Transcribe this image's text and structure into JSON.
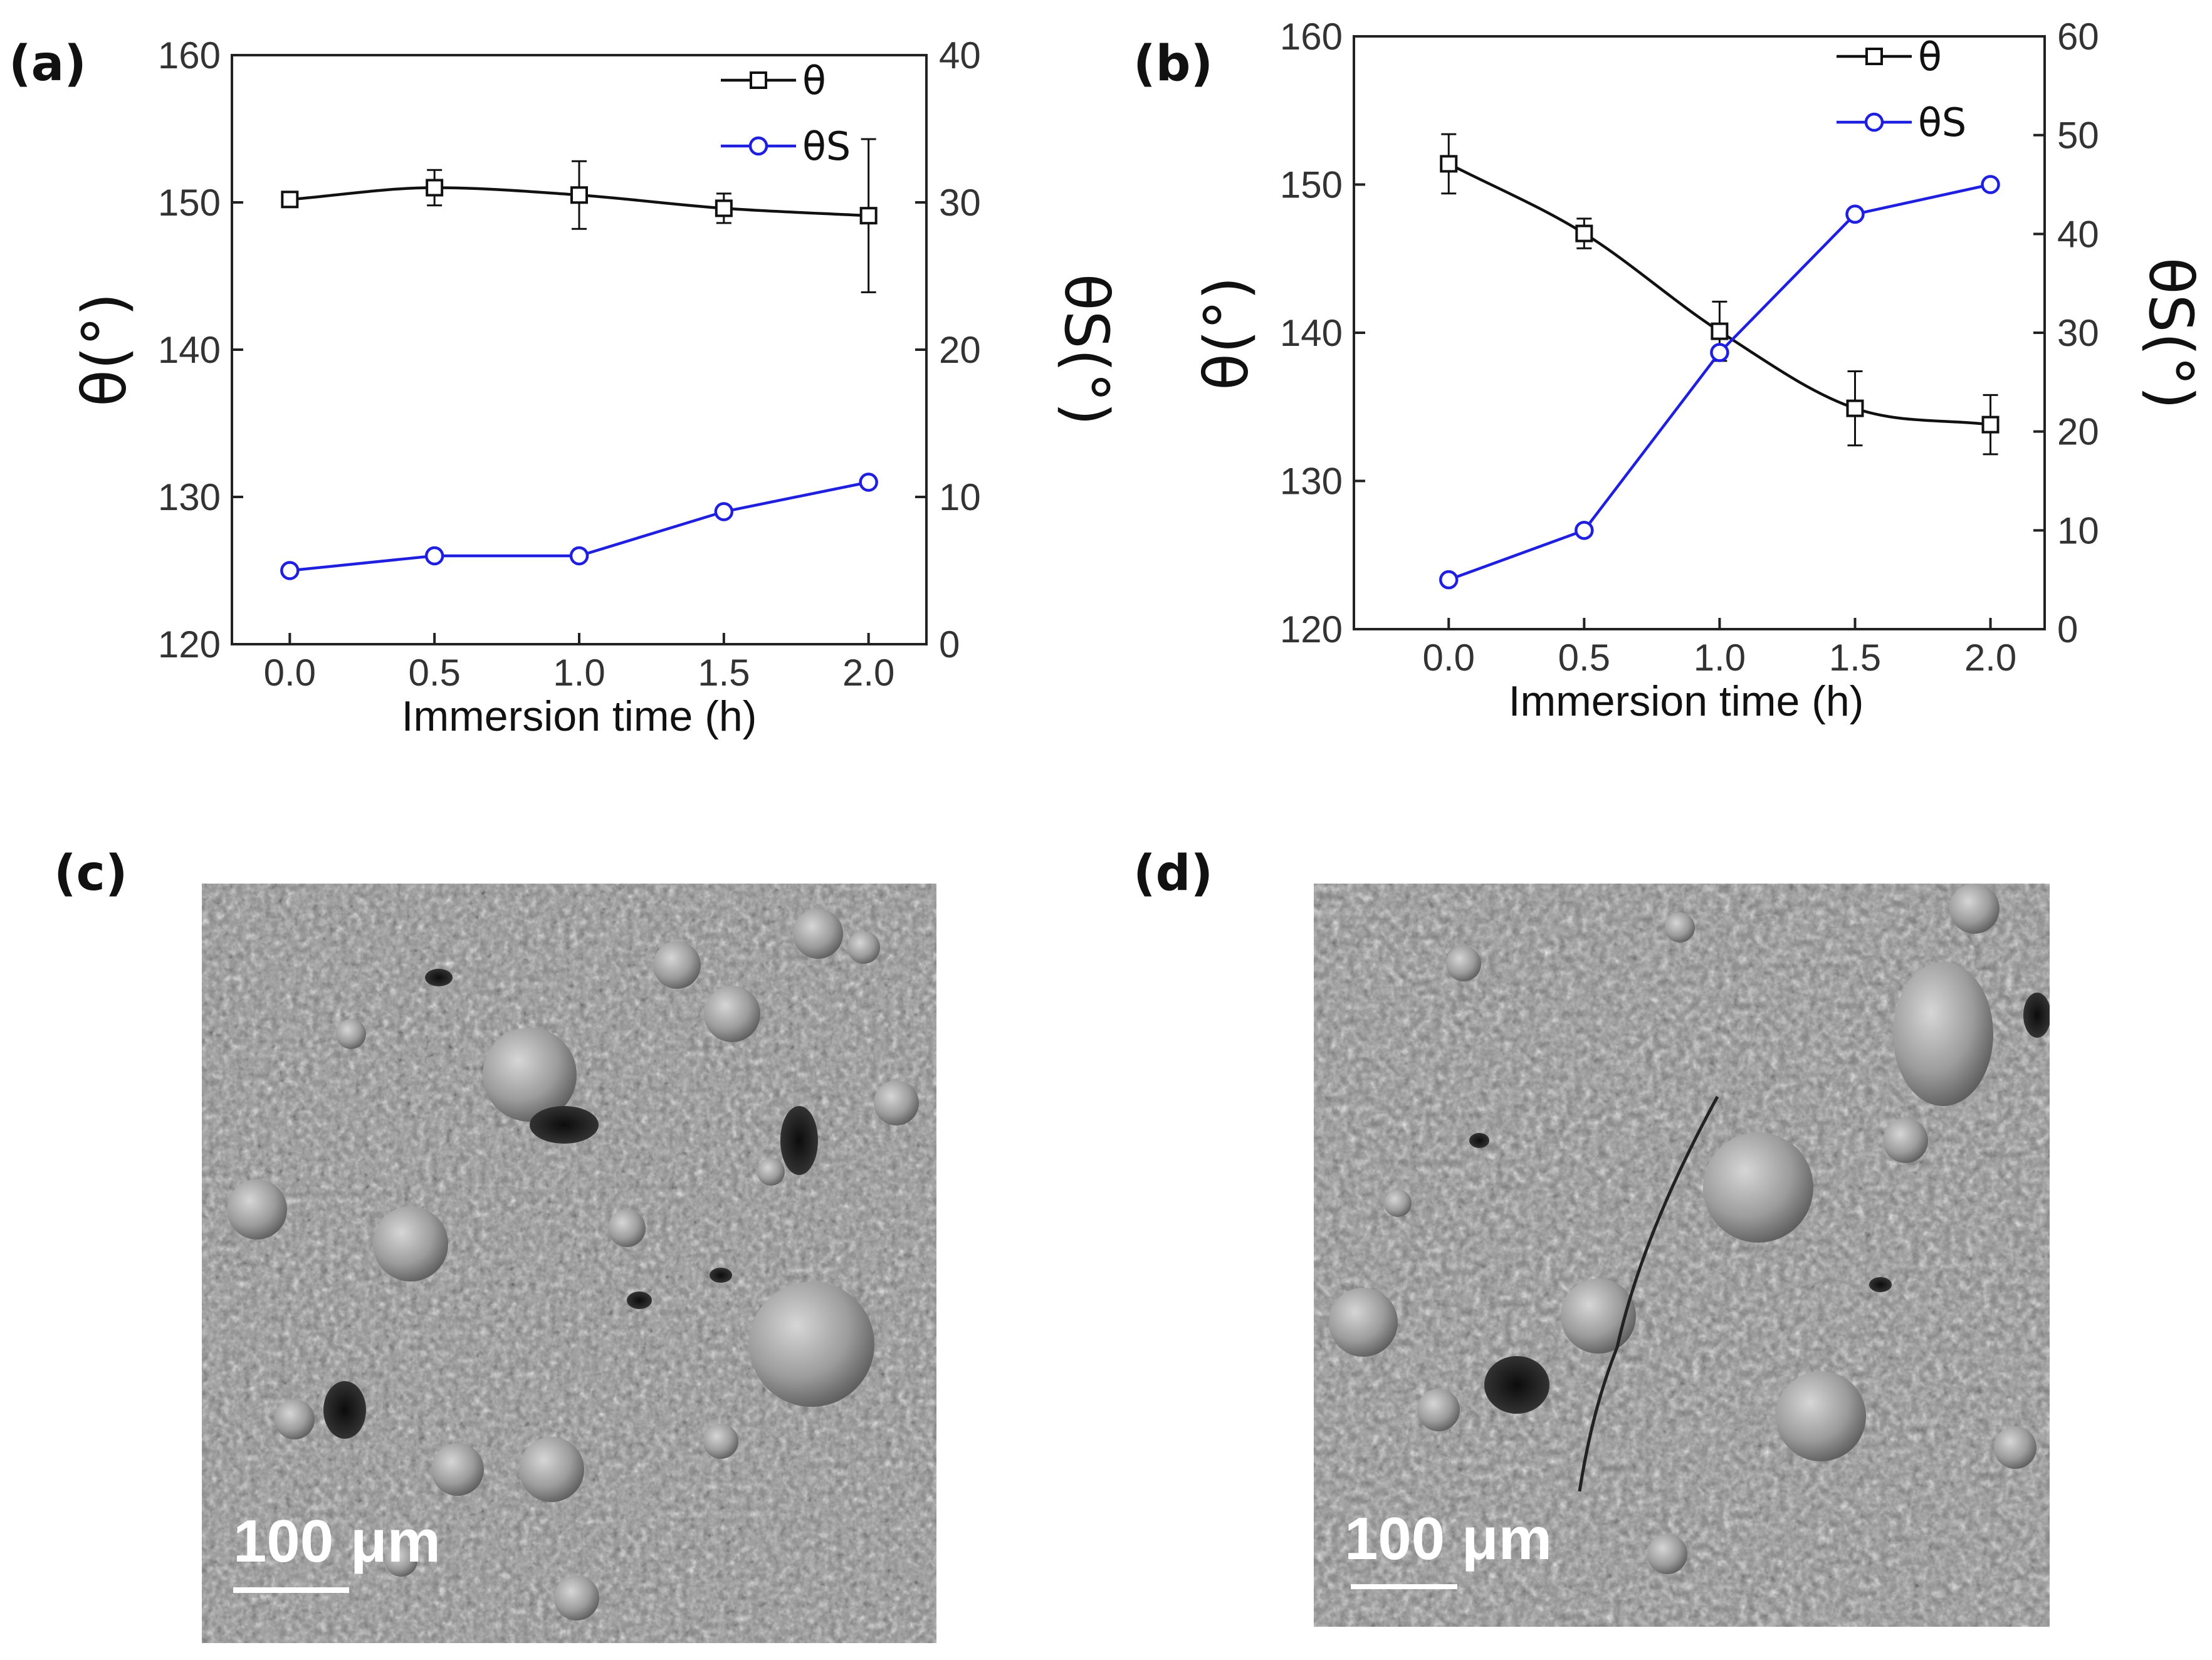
{
  "panels": [
    {
      "label": "(a)"
    },
    {
      "label": "(b)"
    },
    {
      "label": "(c)",
      "scalebar": "100 μm"
    },
    {
      "label": "(d)",
      "scalebar": "100 μm"
    }
  ],
  "chart_data": [
    {
      "type": "line",
      "xlabel": "Immersion time (h)",
      "ylabel": "θ(°)",
      "y2label": "θS(°)",
      "x": [
        0.0,
        0.5,
        1.0,
        1.5,
        2.0
      ],
      "xticks": [
        "0.0",
        "0.5",
        "1.0",
        "1.5",
        "2.0"
      ],
      "xlim": [
        -0.2,
        2.2
      ],
      "ylim": [
        120,
        160
      ],
      "yticks": [
        "120",
        "130",
        "140",
        "150",
        "160"
      ],
      "y2lim": [
        0,
        40
      ],
      "y2ticks": [
        "0",
        "10",
        "20",
        "30",
        "40"
      ],
      "legend_position": "top-right",
      "grid": false,
      "series": [
        {
          "name": "θ",
          "axis": "left",
          "color": "#111111",
          "marker": "square",
          "values": [
            150.2,
            151.0,
            150.5,
            149.6,
            149.1
          ],
          "errors": [
            0.4,
            1.2,
            2.3,
            1.0,
            5.2
          ],
          "smooth": true
        },
        {
          "name": "θS",
          "axis": "right",
          "color": "#1f1fe0",
          "marker": "circle",
          "values": [
            5,
            6,
            6,
            9,
            11
          ],
          "errors": [],
          "smooth": false
        }
      ]
    },
    {
      "type": "line",
      "xlabel": "Immersion time (h)",
      "ylabel": "θ(°)",
      "y2label": "θS(°)",
      "x": [
        0.0,
        0.5,
        1.0,
        1.5,
        2.0
      ],
      "xticks": [
        "0.0",
        "0.5",
        "1.0",
        "1.5",
        "2.0"
      ],
      "xlim": [
        -0.35,
        2.2
      ],
      "ylim": [
        120,
        160
      ],
      "yticks": [
        "120",
        "130",
        "140",
        "150",
        "160"
      ],
      "y2lim": [
        0,
        60
      ],
      "y2ticks": [
        "0",
        "10",
        "20",
        "30",
        "40",
        "50",
        "60"
      ],
      "legend_position": "top-right",
      "grid": false,
      "series": [
        {
          "name": "θ",
          "axis": "left",
          "color": "#111111",
          "marker": "square",
          "values": [
            151.4,
            146.7,
            140.1,
            134.9,
            133.8
          ],
          "errors": [
            2.0,
            1.0,
            2.0,
            2.5,
            2.0
          ],
          "smooth": true
        },
        {
          "name": "θS",
          "axis": "right",
          "color": "#1f1fe0",
          "marker": "circle",
          "values": [
            5,
            10,
            28,
            42,
            45
          ],
          "errors": [],
          "smooth": false
        }
      ]
    }
  ]
}
